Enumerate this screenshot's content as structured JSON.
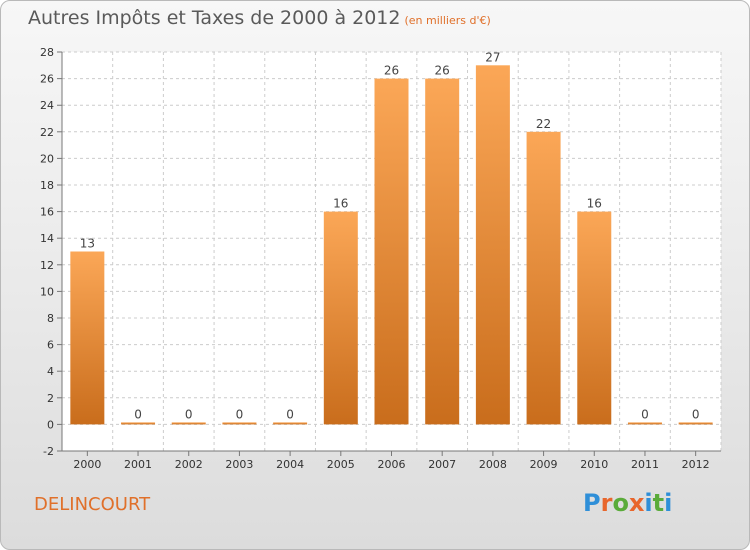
{
  "header": {
    "title": "Autres Impôts et Taxes de 2000 à 2012",
    "subtitle": "(en milliers d'€)"
  },
  "footer": {
    "commune": "DELINCOURT",
    "logo_text": "Proxiti"
  },
  "colors": {
    "bar_top": "#fba757",
    "bar_bottom": "#c96d1c",
    "accent": "#e0702a",
    "grid": "#cccccc"
  },
  "chart_data": {
    "type": "bar",
    "categories": [
      "2000",
      "2001",
      "2002",
      "2003",
      "2004",
      "2005",
      "2006",
      "2007",
      "2008",
      "2009",
      "2010",
      "2011",
      "2012"
    ],
    "values": [
      13,
      0,
      0,
      0,
      0,
      16,
      26,
      26,
      27,
      22,
      16,
      0,
      0
    ],
    "ylim": [
      -2,
      28
    ],
    "yticks": [
      -2,
      0,
      2,
      4,
      6,
      8,
      10,
      12,
      14,
      16,
      18,
      20,
      22,
      24,
      26,
      28
    ],
    "grid": true,
    "title": "Autres Impôts et Taxes de 2000 à 2012",
    "unit_note": "(en milliers d'€)"
  }
}
